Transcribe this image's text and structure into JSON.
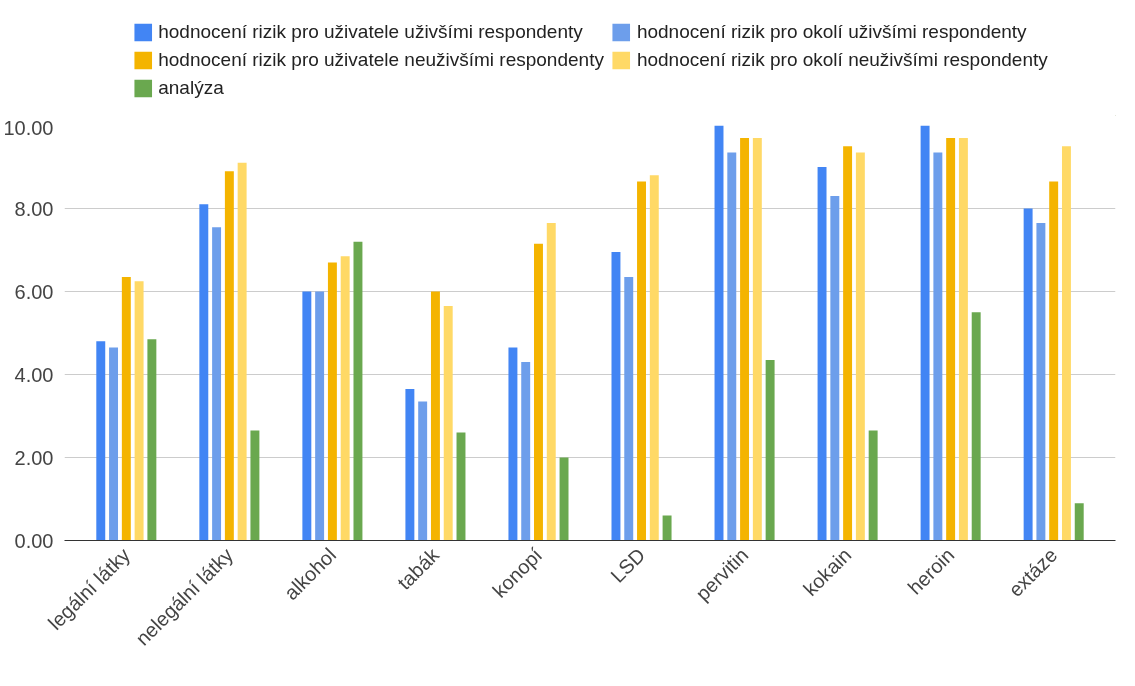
{
  "chart_data": {
    "type": "bar",
    "categories": [
      "legální látky",
      "nelegální látky",
      "alkohol",
      "tabák",
      "konopí",
      "LSD",
      "pervitin",
      "kokain",
      "heroin",
      "extáze"
    ],
    "series": [
      {
        "name": "hodnocení rizik pro uživatele uživšími respondenty",
        "color": "#4285f4",
        "values": [
          4.8,
          8.1,
          6.0,
          3.65,
          4.65,
          6.95,
          10.0,
          9.0,
          10.0,
          8.0
        ]
      },
      {
        "name": "hodnocení rizik pro okolí uživšími respondenty",
        "color": "#6d9eeb",
        "values": [
          4.65,
          7.55,
          6.0,
          3.35,
          4.3,
          6.35,
          9.35,
          8.3,
          9.35,
          7.65
        ]
      },
      {
        "name": "hodnocení rizik pro uživatele neuživšími respondenty",
        "color": "#f4b400",
        "values": [
          6.35,
          8.9,
          6.7,
          6.0,
          7.15,
          8.65,
          9.7,
          9.5,
          9.7,
          8.65
        ]
      },
      {
        "name": "hodnocení rizik pro okolí neuživšími respondenty",
        "color": "#ffd966",
        "values": [
          6.25,
          9.1,
          6.85,
          5.65,
          7.65,
          8.8,
          9.7,
          9.35,
          9.7,
          9.5
        ]
      },
      {
        "name": "analýza",
        "color": "#6aa84f",
        "values": [
          4.85,
          2.65,
          7.2,
          2.6,
          2.0,
          0.6,
          4.35,
          2.65,
          5.5,
          0.9
        ]
      }
    ],
    "ylim": [
      0,
      10
    ],
    "yticks": [
      {
        "value": 0,
        "label": "0.00"
      },
      {
        "value": 2,
        "label": "2.00"
      },
      {
        "value": 4,
        "label": "4.00"
      },
      {
        "value": 6,
        "label": "6.00"
      },
      {
        "value": 8,
        "label": "8.00"
      },
      {
        "value": 10,
        "label": "10.00"
      }
    ],
    "grid": "y",
    "legend": "top"
  }
}
